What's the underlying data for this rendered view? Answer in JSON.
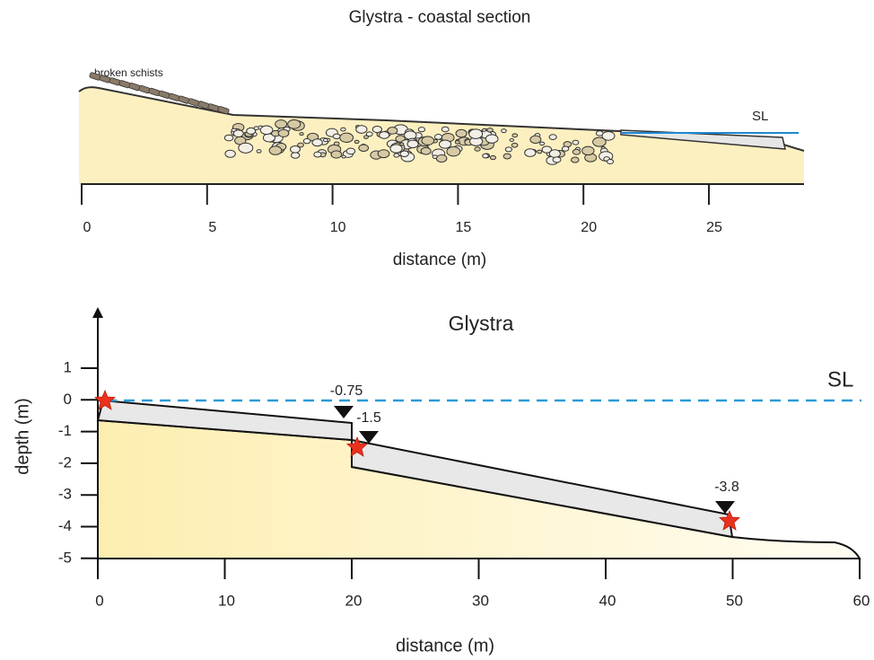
{
  "top": {
    "title": "Glystra - coastal section",
    "schists_label": "broken schists",
    "sea_level_label": "SL",
    "x_ticks": [
      "0",
      "5",
      "10",
      "15",
      "20",
      "25"
    ],
    "x_label": "distance (m)"
  },
  "bottom": {
    "title": "Glystra",
    "sea_level_label": "SL",
    "x_ticks": [
      "0",
      "10",
      "20",
      "30",
      "40",
      "50",
      "60"
    ],
    "y_ticks": [
      "1",
      "0",
      "-1",
      "-2",
      "-3",
      "-4",
      "-5"
    ],
    "x_label": "distance (m)",
    "y_label": "depth (m)",
    "markers": [
      "-0.75",
      "-1.5",
      "-3.8"
    ]
  }
}
